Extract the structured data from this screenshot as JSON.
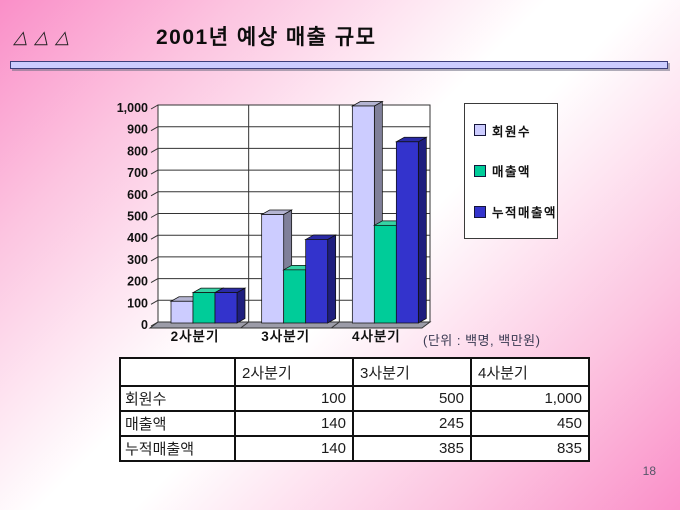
{
  "header": {
    "logo": "△△△",
    "title": "2001년 예상 매출 규모"
  },
  "chart_data": {
    "type": "bar",
    "projection": "3d",
    "title": "",
    "categories": [
      "2사분기",
      "3사분기",
      "4사분기"
    ],
    "series": [
      {
        "name": "회원수",
        "values": [
          100,
          500,
          1000
        ],
        "color": "#ccccff",
        "side_color": "#80809a",
        "top_color": "#b4b4d2"
      },
      {
        "name": "매출액",
        "values": [
          140,
          245,
          450
        ],
        "color": "#00cc99",
        "side_color": "#00916c",
        "top_color": "#36d3a5"
      },
      {
        "name": "누적매출액",
        "values": [
          140,
          385,
          835
        ],
        "color": "#3333cc",
        "side_color": "#1e1e7e",
        "top_color": "#2a2aa6"
      }
    ],
    "ylim": [
      0,
      1000
    ],
    "y_ticks": [
      "0",
      "100",
      "200",
      "300",
      "400",
      "500",
      "600",
      "700",
      "800",
      "900",
      "1,000"
    ],
    "grid": true,
    "legend_position": "right",
    "unit_note": "(단위 : 백명, 백만원)"
  },
  "table": {
    "col_headers": [
      "",
      "2사분기",
      "3사분기",
      "4사분기"
    ],
    "rows": [
      {
        "label": "회원수",
        "values": [
          "100",
          "500",
          "1,000"
        ]
      },
      {
        "label": "매출액",
        "values": [
          "140",
          "245",
          "450"
        ]
      },
      {
        "label": "누적매출액",
        "values": [
          "140",
          "385",
          "835"
        ]
      }
    ]
  },
  "footer": {
    "page_number": "18"
  },
  "colors": {
    "divider_fill": "#ccccff",
    "divider_border": "#3d3d7a",
    "floor": "#9c9ca8",
    "wall": "#ffffff",
    "grid_line": "#333333",
    "background_pink": "#fa8fc8"
  }
}
